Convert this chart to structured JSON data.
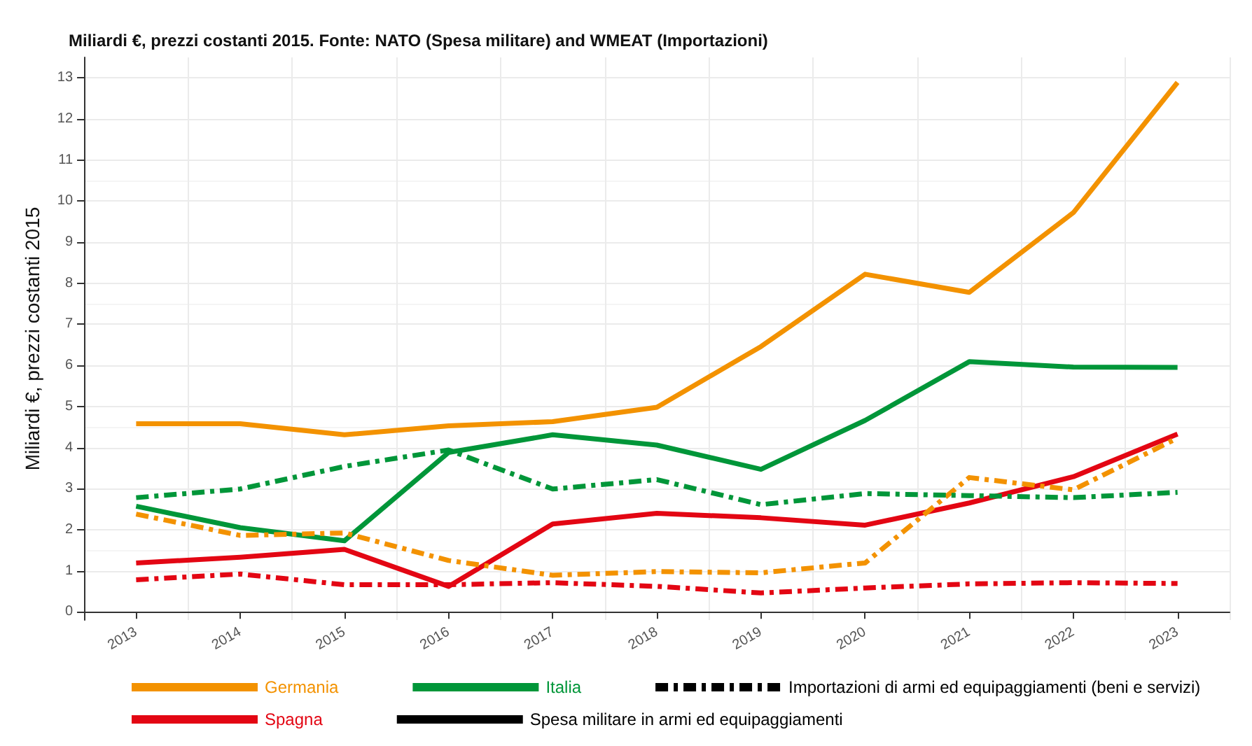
{
  "chart_data": {
    "type": "line",
    "title": "Miliardi €, prezzi costanti 2015. Fonte: NATO (Spesa militare) and WMEAT (Importazioni)",
    "ylabel": "Miliardi €, prezzi costanti 2015",
    "categories": [
      "2013",
      "2014",
      "2015",
      "2016",
      "2017",
      "2018",
      "2019",
      "2020",
      "2021",
      "2022",
      "2023"
    ],
    "series": [
      {
        "name": "Germania",
        "color": "#f39200",
        "line_style": "solid",
        "values": [
          4.58,
          4.58,
          4.31,
          4.53,
          4.63,
          4.98,
          6.46,
          8.22,
          7.78,
          9.72,
          12.89
        ]
      },
      {
        "name": "Italia",
        "color": "#009639",
        "line_style": "solid",
        "values": [
          2.57,
          2.05,
          1.73,
          3.88,
          4.31,
          4.06,
          3.47,
          4.66,
          6.09,
          5.96,
          5.95
        ]
      },
      {
        "name": "Importazioni di armi ed equipaggiamenti (beni e servizi)",
        "color": "#000000",
        "line_style": "dashed",
        "values": [
          null,
          null,
          null,
          null,
          null,
          null,
          null,
          null,
          null,
          null,
          null
        ]
      },
      {
        "name": "Spagna",
        "color": "#e30613",
        "line_style": "solid",
        "values": [
          1.19,
          1.33,
          1.52,
          0.62,
          2.14,
          2.4,
          2.29,
          2.11,
          2.65,
          3.29,
          4.33
        ]
      },
      {
        "name": "Spesa militare in armi ed equipaggiamenti",
        "color": "#000000",
        "line_style": "solid",
        "values": [
          null,
          null,
          null,
          null,
          null,
          null,
          null,
          null,
          null,
          null,
          null
        ]
      },
      {
        "color": "#f39200",
        "line_style": "dashed",
        "values": [
          2.38,
          1.86,
          1.92,
          1.25,
          0.89,
          0.98,
          0.95,
          1.19,
          3.27,
          2.97,
          4.23
        ]
      },
      {
        "color": "#009639",
        "line_style": "dashed",
        "values": [
          2.78,
          2.99,
          3.54,
          3.94,
          2.99,
          3.22,
          2.61,
          2.88,
          2.83,
          2.78,
          2.91
        ]
      },
      {
        "color": "#e30613",
        "line_style": "dashed",
        "values": [
          0.78,
          0.92,
          0.66,
          0.66,
          0.71,
          0.62,
          0.46,
          0.58,
          0.68,
          0.71,
          0.69
        ]
      }
    ],
    "ylim": [
      -0.2,
      13.5
    ],
    "yticks": [
      0,
      1,
      2,
      3,
      4,
      5,
      6,
      7,
      8,
      9,
      10,
      11,
      12,
      13
    ],
    "grid": true,
    "legend": "bottom",
    "marker": "none"
  }
}
